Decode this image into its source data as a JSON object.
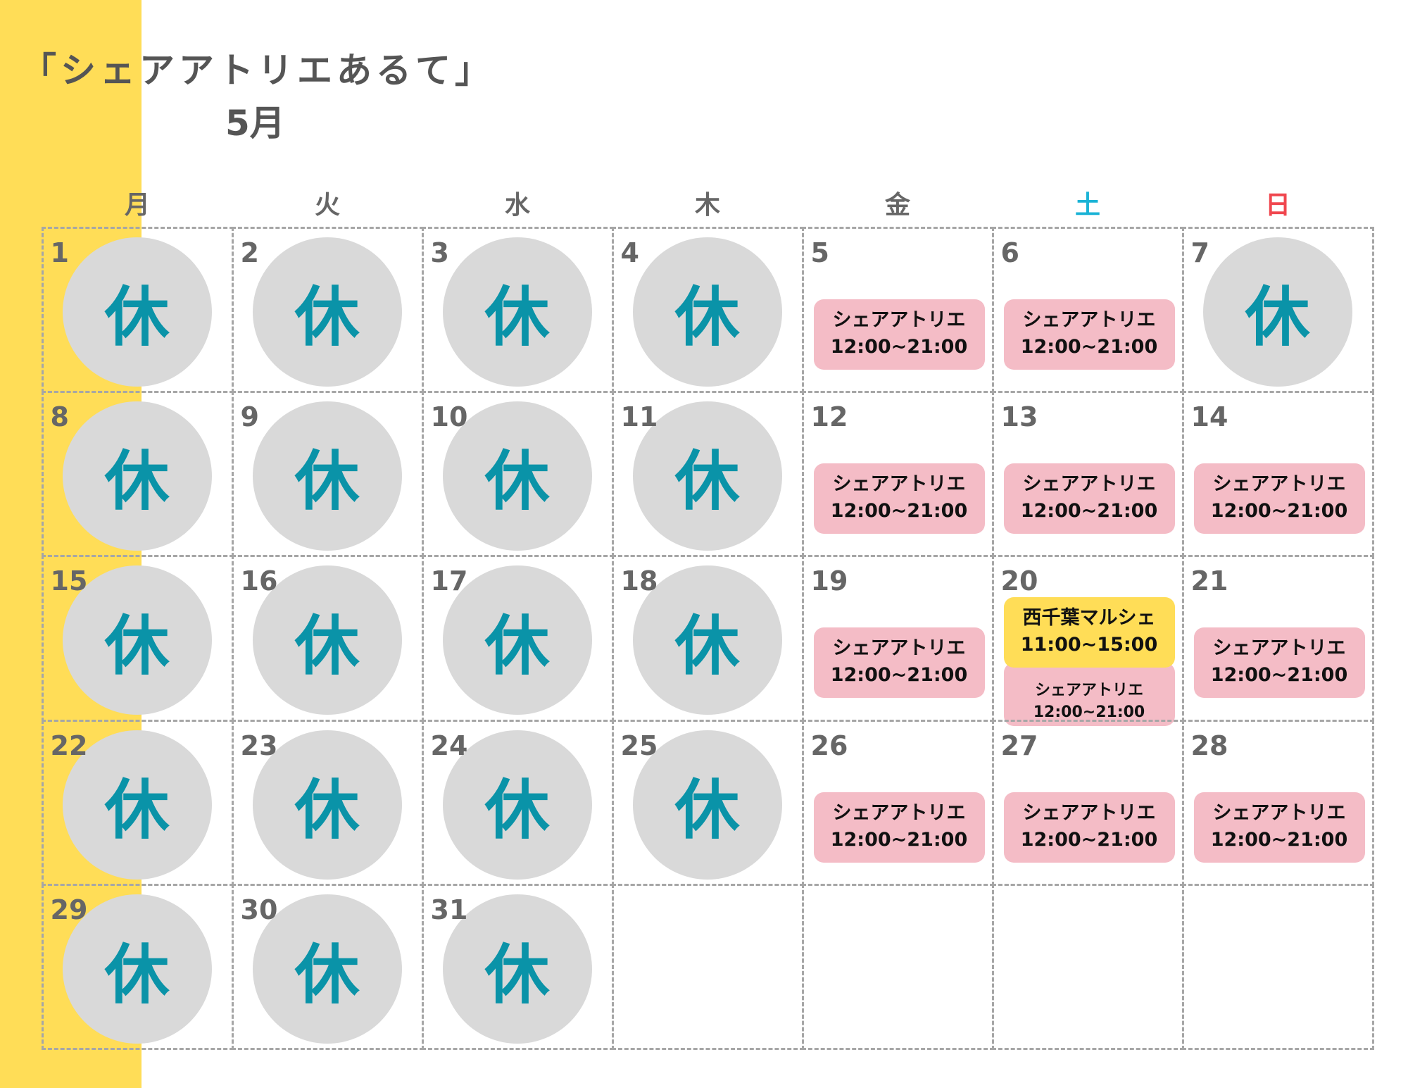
{
  "title": "「シェアアトリエあるて」",
  "month": "5月",
  "colors": {
    "band": "#ffdd57",
    "closed_circle": "#d9d9d9",
    "closed_text": "#0a93a8",
    "event_pink": "#f4bcc6",
    "event_yellow": "#ffdd57",
    "saturday": "#1ab3d6",
    "sunday": "#f0474f"
  },
  "weekdays": [
    {
      "label": "月",
      "color": "#666666"
    },
    {
      "label": "火",
      "color": "#666666"
    },
    {
      "label": "水",
      "color": "#666666"
    },
    {
      "label": "木",
      "color": "#666666"
    },
    {
      "label": "金",
      "color": "#666666"
    },
    {
      "label": "土",
      "color": "#1ab3d6"
    },
    {
      "label": "日",
      "color": "#f0474f"
    }
  ],
  "closed_label": "休",
  "days": [
    {
      "day": "1",
      "closed": true
    },
    {
      "day": "2",
      "closed": true
    },
    {
      "day": "3",
      "closed": true
    },
    {
      "day": "4",
      "closed": true
    },
    {
      "day": "5",
      "events": [
        {
          "style": "pink",
          "name": "シェアアトリエ",
          "time": "12:00~21:00"
        }
      ]
    },
    {
      "day": "6",
      "events": [
        {
          "style": "pink",
          "name": "シェアアトリエ",
          "time": "12:00~21:00"
        }
      ]
    },
    {
      "day": "7",
      "closed": true
    },
    {
      "day": "8",
      "closed": true
    },
    {
      "day": "9",
      "closed": true
    },
    {
      "day": "10",
      "closed": true
    },
    {
      "day": "11",
      "closed": true
    },
    {
      "day": "12",
      "events": [
        {
          "style": "pink",
          "name": "シェアアトリエ",
          "time": "12:00~21:00"
        }
      ]
    },
    {
      "day": "13",
      "events": [
        {
          "style": "pink",
          "name": "シェアアトリエ",
          "time": "12:00~21:00"
        }
      ]
    },
    {
      "day": "14",
      "events": [
        {
          "style": "pink",
          "name": "シェアアトリエ",
          "time": "12:00~21:00"
        }
      ]
    },
    {
      "day": "15",
      "closed": true
    },
    {
      "day": "16",
      "closed": true
    },
    {
      "day": "17",
      "closed": true
    },
    {
      "day": "18",
      "closed": true
    },
    {
      "day": "19",
      "events": [
        {
          "style": "pink",
          "name": "シェアアトリエ",
          "time": "12:00~21:00"
        }
      ]
    },
    {
      "day": "20",
      "events": [
        {
          "style": "pink small",
          "name": "シェアアトリエ",
          "time": "12:00~21:00"
        },
        {
          "style": "yellow",
          "name": "西千葉マルシェ",
          "time": "11:00~15:00"
        }
      ]
    },
    {
      "day": "21",
      "events": [
        {
          "style": "pink",
          "name": "シェアアトリエ",
          "time": "12:00~21:00"
        }
      ]
    },
    {
      "day": "22",
      "closed": true
    },
    {
      "day": "23",
      "closed": true
    },
    {
      "day": "24",
      "closed": true
    },
    {
      "day": "25",
      "closed": true
    },
    {
      "day": "26",
      "events": [
        {
          "style": "pink",
          "name": "シェアアトリエ",
          "time": "12:00~21:00"
        }
      ]
    },
    {
      "day": "27",
      "events": [
        {
          "style": "pink",
          "name": "シェアアトリエ",
          "time": "12:00~21:00"
        }
      ]
    },
    {
      "day": "28",
      "events": [
        {
          "style": "pink",
          "name": "シェアアトリエ",
          "time": "12:00~21:00"
        }
      ]
    },
    {
      "day": "29",
      "closed": true
    },
    {
      "day": "30",
      "closed": true
    },
    {
      "day": "31",
      "closed": true
    },
    {
      "day": ""
    },
    {
      "day": ""
    },
    {
      "day": ""
    },
    {
      "day": ""
    }
  ]
}
